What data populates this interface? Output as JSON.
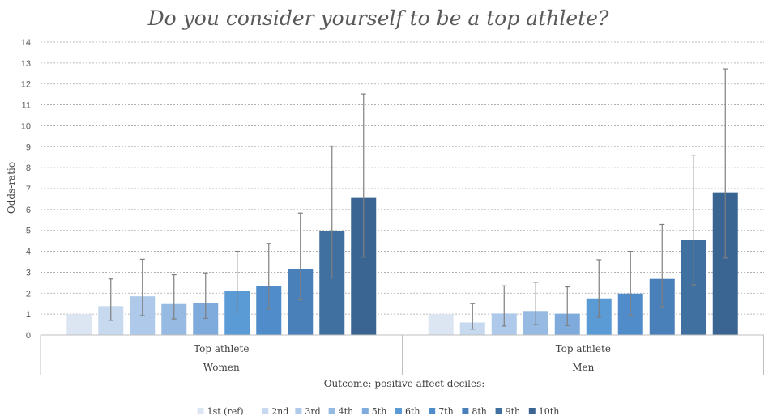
{
  "chart_data": {
    "type": "bar",
    "title": "Do you consider yourself to be a top athlete?",
    "ylabel": "Odds-ratio",
    "xlabel": "Outcome: positive affect deciles:",
    "ylim": [
      0,
      14
    ],
    "yticks": [
      0,
      1,
      2,
      3,
      4,
      5,
      6,
      7,
      8,
      9,
      10,
      11,
      12,
      13,
      14
    ],
    "grid": true,
    "legend_position": "bottom",
    "groups": [
      {
        "category": "Top athlete",
        "group": "Women"
      },
      {
        "category": "Top athlete",
        "group": "Men"
      }
    ],
    "series": [
      {
        "name": "1st (ref)",
        "color": "#dce6f2",
        "values": [
          1.0,
          1.0
        ],
        "ci_low": [
          null,
          null
        ],
        "ci_high": [
          null,
          null
        ]
      },
      {
        "name": "2nd",
        "color": "#c6d9ef",
        "values": [
          1.38,
          0.6
        ],
        "ci_low": [
          0.7,
          0.28
        ],
        "ci_high": [
          2.68,
          1.5
        ]
      },
      {
        "name": "3rd",
        "color": "#aec9e9",
        "values": [
          1.85,
          1.03
        ],
        "ci_low": [
          0.93,
          0.43
        ],
        "ci_high": [
          3.62,
          2.35
        ]
      },
      {
        "name": "4th",
        "color": "#97bae3",
        "values": [
          1.48,
          1.15
        ],
        "ci_low": [
          0.77,
          0.5
        ],
        "ci_high": [
          2.88,
          2.52
        ]
      },
      {
        "name": "5th",
        "color": "#7faadc",
        "values": [
          1.52,
          1.02
        ],
        "ci_low": [
          0.8,
          0.45
        ],
        "ci_high": [
          2.97,
          2.3
        ]
      },
      {
        "name": "6th",
        "color": "#5a9ad5",
        "values": [
          2.1,
          1.75
        ],
        "ci_low": [
          1.1,
          0.85
        ],
        "ci_high": [
          4.0,
          3.6
        ]
      },
      {
        "name": "7th",
        "color": "#4f8cc9",
        "values": [
          2.35,
          1.98
        ],
        "ci_low": [
          1.25,
          0.95
        ],
        "ci_high": [
          4.38,
          4.0
        ]
      },
      {
        "name": "8th",
        "color": "#4a80b9",
        "values": [
          3.15,
          2.68
        ],
        "ci_low": [
          1.68,
          1.35
        ],
        "ci_high": [
          5.83,
          5.28
        ]
      },
      {
        "name": "9th",
        "color": "#40709f",
        "values": [
          4.97,
          4.55
        ],
        "ci_low": [
          2.72,
          2.4
        ],
        "ci_high": [
          9.03,
          8.6
        ]
      },
      {
        "name": "10th",
        "color": "#3a6592",
        "values": [
          6.55,
          6.82
        ],
        "ci_low": [
          3.72,
          3.68
        ],
        "ci_high": [
          11.52,
          12.72
        ]
      }
    ]
  }
}
